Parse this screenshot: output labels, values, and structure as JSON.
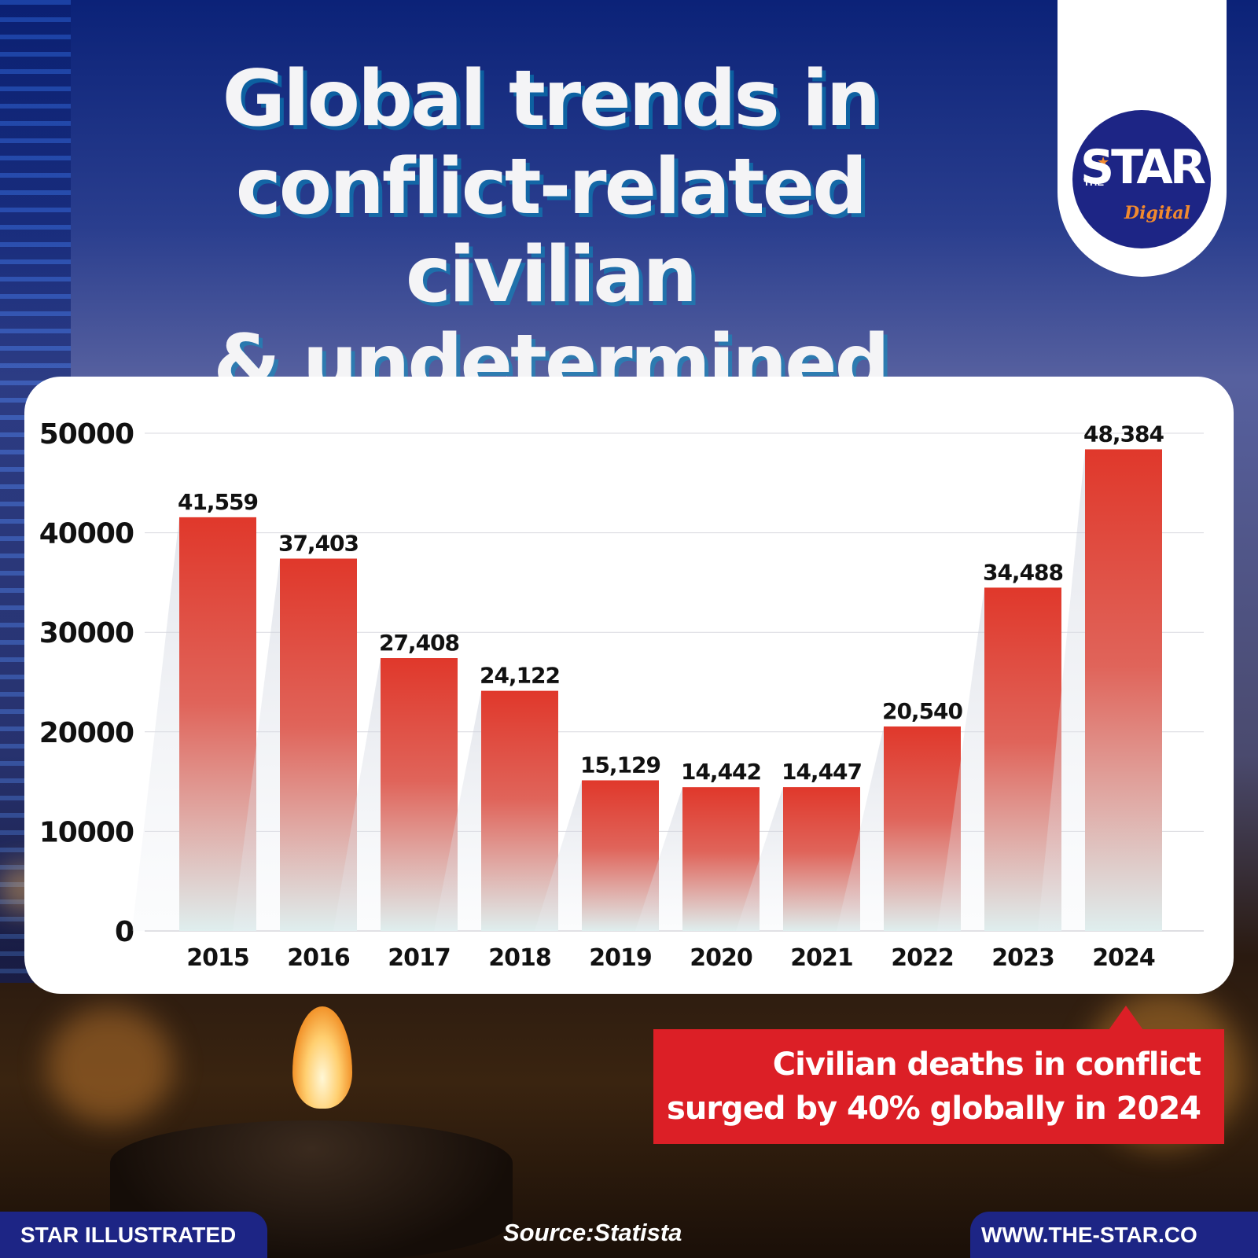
{
  "header": {
    "title_lines": [
      "Global trends in",
      "conflict-related civilian",
      "& undetermined deaths"
    ]
  },
  "logo": {
    "the": "THE",
    "star": "STAR",
    "digital": "Digital"
  },
  "chart_data": {
    "type": "bar",
    "title": "Global trends in conflict-related civilian & undetermined deaths",
    "categories": [
      "2015",
      "2016",
      "2017",
      "2018",
      "2019",
      "2020",
      "2021",
      "2022",
      "2023",
      "2024"
    ],
    "values": [
      41559,
      37403,
      27408,
      24122,
      15129,
      14442,
      14447,
      20540,
      34488,
      48384
    ],
    "data_labels": [
      "41,559",
      "37,403",
      "27,408",
      "24,122",
      "15,129",
      "14,442",
      "14,447",
      "20,540",
      "34,488",
      "48,384"
    ],
    "yticks": [
      "0",
      "10000",
      "20000",
      "30000",
      "40000",
      "50000"
    ],
    "ylim": [
      0,
      50000
    ],
    "grid": true,
    "colors": {
      "bar_top": "#e0382b",
      "bar_bottom": "#dfeeee",
      "grid": "#d9d9df",
      "text": "#111111"
    }
  },
  "callout": {
    "line1": "Civilian deaths in conflict",
    "line2": "surged by 40% globally in 2024"
  },
  "footer": {
    "left": "STAR ILLUSTRATED",
    "source": "Source:Statista",
    "right": "WWW.THE-STAR.CO"
  },
  "colors": {
    "brand_navy": "#1d2585",
    "callout_red": "#dc1f26",
    "logo_orange": "#f28a2e"
  }
}
